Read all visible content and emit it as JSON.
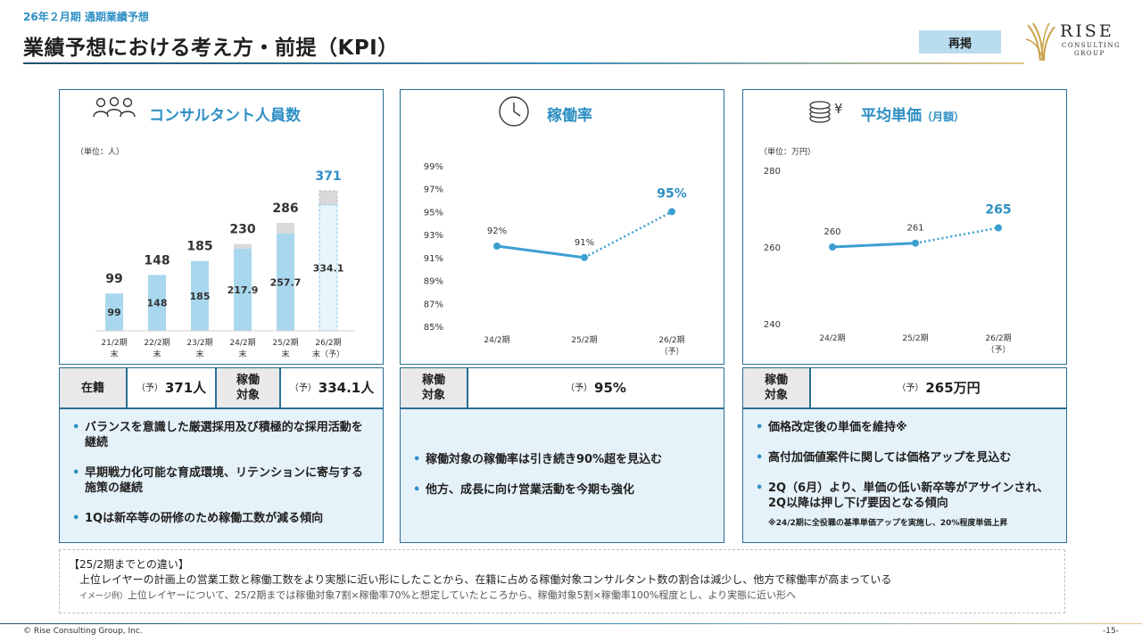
{
  "header": {
    "subtitle": "26年２月期 通期業績予想",
    "title": "業績予想における考え方・前提（KPI）",
    "repost_label": "再掲"
  },
  "logo": {
    "name": "RISE",
    "sub1": "CONSULTING",
    "sub2": "GROUP"
  },
  "panels": {
    "consultants": {
      "title": "コンサルタント人員数",
      "icon": "people-icon",
      "unit": "（単位：人）",
      "chart_data": {
        "type": "bar",
        "categories": [
          "21/2期末",
          "22/2期末",
          "23/2期末",
          "24/2期末",
          "25/2期末",
          "26/2期末（予）"
        ],
        "series": [
          {
            "values": [
              99,
              148,
              185,
              217.9,
              257.7,
              334.1
            ]
          },
          {
            "values": [
              99,
              148,
              185,
              230,
              286,
              371
            ]
          }
        ],
        "inner_labels": [
          "99",
          "148",
          "185",
          "217.9",
          "257.7",
          "334.1"
        ],
        "total_labels": [
          "99",
          "148",
          "185",
          "230",
          "286",
          "371"
        ],
        "category_lines": [
          [
            "21/2期",
            "末"
          ],
          [
            "22/2期",
            "末"
          ],
          [
            "23/2期",
            "末"
          ],
          [
            "24/2期",
            "末"
          ],
          [
            "25/2期",
            "末"
          ],
          [
            "26/2期",
            "末（予）"
          ]
        ],
        "forecast_index": 5,
        "colors": {
          "utilized": "#a9d8ee",
          "rest": "#d9d9d9",
          "highlight": "#2e8fc4"
        }
      },
      "kpi": {
        "label1": "在籍",
        "value1": "371人",
        "label2a": "稼働",
        "label2b": "対象",
        "value2": "334.1人",
        "yo": "（予）"
      },
      "notes": [
        "バランスを意識した厳選採用及び積極的な採用活動を継続",
        "早期戦力化可能な育成環境、リテンションに寄与する施策の継続",
        "1Qは新卒等の研修のため稼働工数が減る傾向"
      ]
    },
    "utilization": {
      "title": "稼働率",
      "icon": "clock-icon",
      "chart_data": {
        "type": "line",
        "categories": [
          "24/2期",
          "25/2期",
          "26/2期（予）"
        ],
        "category_lines": [
          [
            "24/2期"
          ],
          [
            "25/2期"
          ],
          [
            "26/2期",
            "（予）"
          ]
        ],
        "values": [
          92,
          91,
          95
        ],
        "value_labels": [
          "92%",
          "91%",
          "95%"
        ],
        "ylim": [
          85,
          99
        ],
        "yticks": [
          85,
          87,
          89,
          91,
          93,
          95,
          97,
          99
        ],
        "ytick_labels": [
          "85%",
          "87%",
          "89%",
          "91%",
          "93%",
          "95%",
          "97%",
          "99%"
        ],
        "forecast_from_index": 1,
        "colors": {
          "line": "#3d9fd1"
        }
      },
      "kpi": {
        "label_a": "稼働",
        "label_b": "対象",
        "value": "95%",
        "yo": "（予）"
      },
      "notes": [
        "稼働対象の稼働率は引き続き90%超を見込む",
        "他方、成長に向け営業活動を今期も強化"
      ]
    },
    "price": {
      "title": "平均単価",
      "title_suffix": "（月額）",
      "icon": "coins-yen-icon",
      "unit": "（単位：万円）",
      "chart_data": {
        "type": "line",
        "categories": [
          "24/2期",
          "25/2期",
          "26/2期（予）"
        ],
        "category_lines": [
          [
            "24/2期"
          ],
          [
            "25/2期"
          ],
          [
            "26/2期",
            "（予）"
          ]
        ],
        "values": [
          260,
          261,
          265
        ],
        "value_labels": [
          "260",
          "261",
          "265"
        ],
        "ylim": [
          240,
          280
        ],
        "yticks": [
          240,
          260,
          280
        ],
        "ytick_labels": [
          "240",
          "260",
          "280"
        ],
        "forecast_from_index": 1,
        "colors": {
          "line": "#3d9fd1"
        }
      },
      "kpi": {
        "label_a": "稼働",
        "label_b": "対象",
        "value": "265万円",
        "yo": "（予）"
      },
      "notes": [
        "価格改定後の単価を維持※",
        "高付加価値案件に関しては価格アップを見込む",
        "2Q（6月）より、単価の低い新卒等がアサインされ、2Q以降は押し下げ要因となる傾向"
      ],
      "footnote": "※24/2期に全役職の基準単価アップを実施し、20%程度単価上昇"
    }
  },
  "difference": {
    "heading": "【25/2期までとの違い】",
    "line1": "上位レイヤーの計画上の営業工数と稼働工数をより実態に近い形にしたことから、在籍に占める稼働対象コンサルタント数の割合は減少し、他方で稼働率が高まっている",
    "line2_prefix": "イメージ例）",
    "line2": "上位レイヤーについて、25/2期までは稼働対象7割×稼働率70%と想定していたところから、稼働対象5割×稼働率100%程度とし、より実態に近い形へ"
  },
  "footer": {
    "copyright": "© Rise Consulting Group, Inc.",
    "page": "-15-"
  }
}
